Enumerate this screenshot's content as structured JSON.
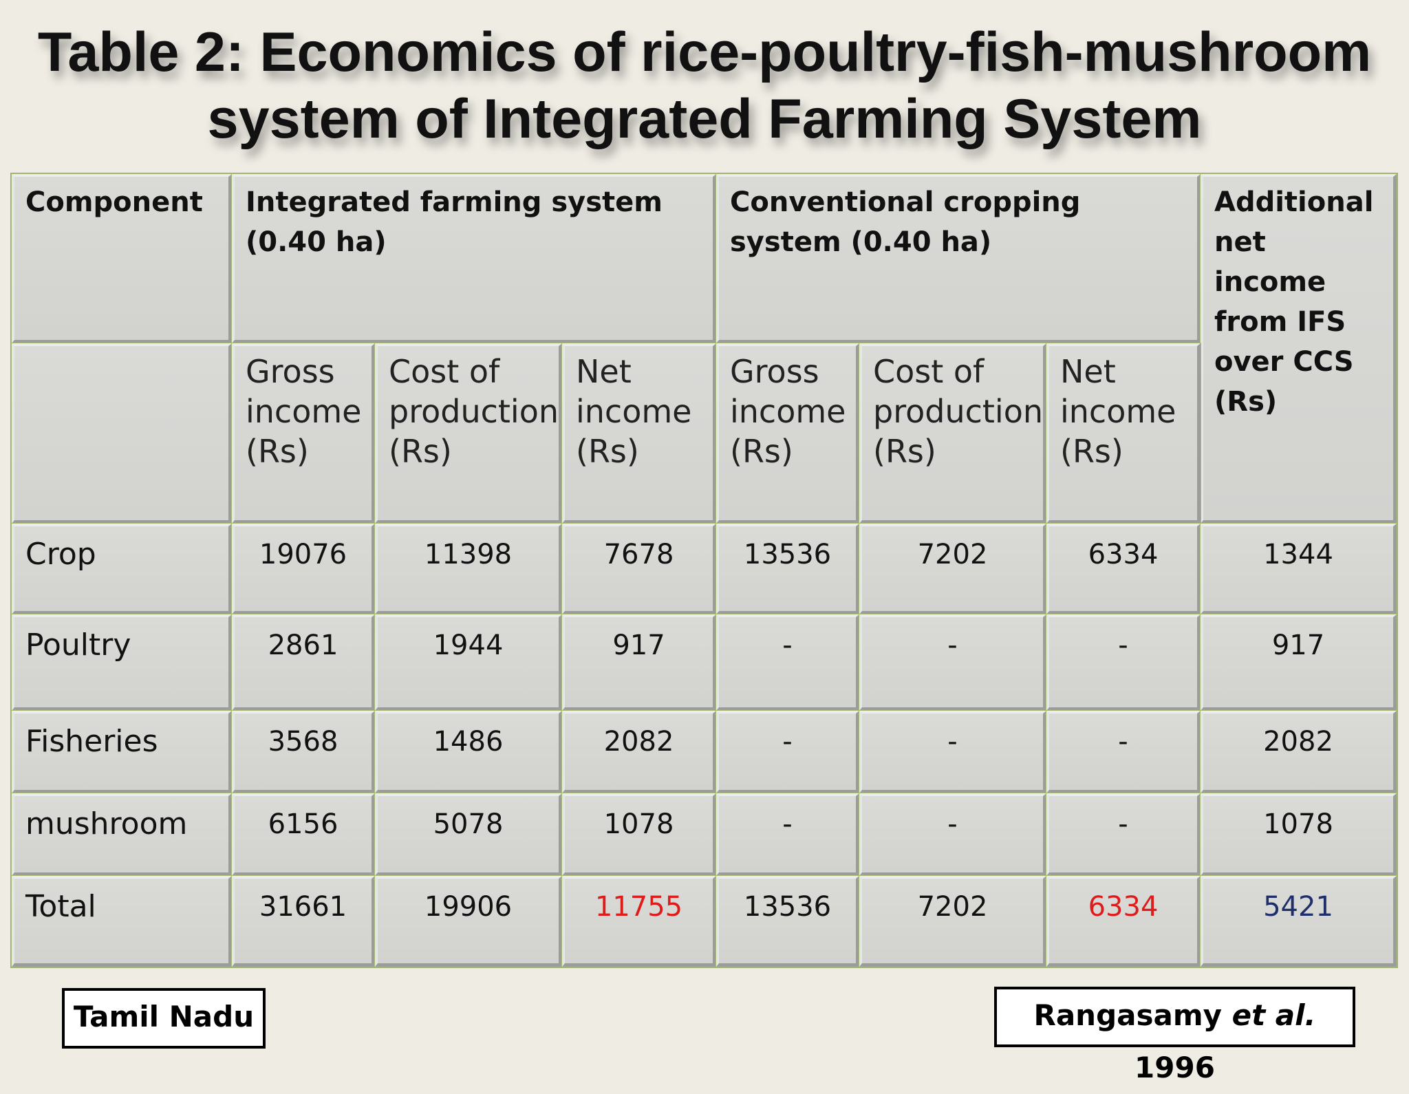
{
  "title": {
    "line1": "Table 2: Economics of rice-poultry-fish-mushroom",
    "line2": "system of Integrated Farming System"
  },
  "table": {
    "header": {
      "component": "Component",
      "ifs": "Integrated farming system (0.40 ha)",
      "ccs": "Conventional cropping system (0.40 ha)",
      "additional": "Additional net income from IFS over CCS (Rs)",
      "gross": "Gross income (Rs)",
      "cost": "Cost of production (Rs)",
      "net": "Net income (Rs)"
    },
    "rows": [
      {
        "component": "Crop",
        "ifs_gross": "19076",
        "ifs_cost": "11398",
        "ifs_net": "7678",
        "ccs_gross": "13536",
        "ccs_cost": "7202",
        "ccs_net": "6334",
        "additional": "1344"
      },
      {
        "component": "Poultry",
        "ifs_gross": "2861",
        "ifs_cost": "1944",
        "ifs_net": "917",
        "ccs_gross": "-",
        "ccs_cost": "-",
        "ccs_net": "-",
        "additional": "917"
      },
      {
        "component": "Fisheries",
        "ifs_gross": "3568",
        "ifs_cost": "1486",
        "ifs_net": "2082",
        "ccs_gross": "-",
        "ccs_cost": "-",
        "ccs_net": "-",
        "additional": "2082"
      },
      {
        "component": "mushroom",
        "ifs_gross": "6156",
        "ifs_cost": "5078",
        "ifs_net": "1078",
        "ccs_gross": "-",
        "ccs_cost": "-",
        "ccs_net": "-",
        "additional": "1078"
      },
      {
        "component": "Total",
        "ifs_gross": "31661",
        "ifs_cost": "19906",
        "ifs_net": "11755",
        "ccs_gross": "13536",
        "ccs_cost": "7202",
        "ccs_net": "6334",
        "additional": "5421"
      }
    ],
    "highlight_colors": {
      "net_total": "#e01b1b",
      "additional_total": "#1f2f6b"
    }
  },
  "footer": {
    "location": "Tamil Nadu",
    "citation_author": "Rangasamy",
    "citation_etal": "et al.",
    "citation_year": "1996"
  }
}
